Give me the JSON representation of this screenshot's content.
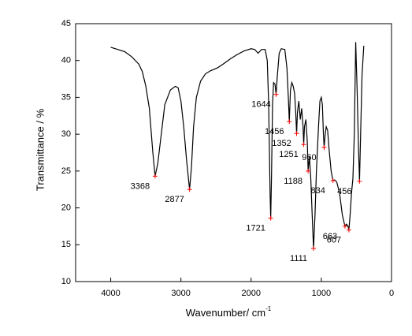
{
  "chart_data": {
    "type": "line",
    "xlabel": "Wavenumber/ cm",
    "xlabel_superscript": "-1",
    "ylabel": "Transmittance / %",
    "xlim": [
      4500,
      0
    ],
    "xticks": [
      4000,
      3000,
      2000,
      1000,
      0
    ],
    "ylim": [
      10,
      45
    ],
    "yticks": [
      10,
      15,
      20,
      25,
      30,
      35,
      40,
      45
    ],
    "color": "#000000",
    "marker_color": "#ff0000",
    "x": [
      4000,
      3900,
      3800,
      3700,
      3600,
      3550,
      3500,
      3450,
      3400,
      3368,
      3330,
      3280,
      3230,
      3150,
      3080,
      3040,
      3000,
      2960,
      2920,
      2877,
      2850,
      2820,
      2780,
      2720,
      2650,
      2580,
      2480,
      2400,
      2300,
      2200,
      2100,
      2000,
      1950,
      1900,
      1850,
      1800,
      1770,
      1750,
      1730,
      1721,
      1710,
      1695,
      1680,
      1660,
      1644,
      1630,
      1600,
      1570,
      1520,
      1490,
      1470,
      1456,
      1440,
      1420,
      1400,
      1380,
      1365,
      1352,
      1340,
      1320,
      1300,
      1280,
      1260,
      1251,
      1240,
      1220,
      1200,
      1188,
      1170,
      1150,
      1130,
      1111,
      1090,
      1070,
      1040,
      1020,
      1000,
      985,
      970,
      960,
      945,
      930,
      910,
      890,
      860,
      834,
      810,
      780,
      740,
      700,
      663,
      640,
      620,
      607,
      590,
      570,
      550,
      530,
      510,
      490,
      470,
      456,
      440,
      420,
      395
    ],
    "values": [
      41.8,
      41.5,
      41.2,
      40.5,
      39.5,
      38.5,
      36.5,
      33.5,
      27.5,
      24.3,
      26,
      30,
      34,
      36,
      36.5,
      36.3,
      34.5,
      31,
      26.5,
      22.5,
      25.5,
      31,
      35,
      37.2,
      38.2,
      38.6,
      39,
      39.5,
      40.2,
      40.8,
      41.3,
      41.6,
      41.5,
      41,
      41.5,
      41.5,
      40,
      34,
      22,
      18.6,
      24,
      34,
      37,
      36.8,
      35.4,
      37.5,
      41,
      41.6,
      41.5,
      39,
      35,
      31.7,
      36,
      37,
      36.5,
      35.5,
      33,
      30.1,
      33,
      34.5,
      32,
      33.5,
      31,
      28.6,
      31,
      32,
      29,
      25,
      27,
      24,
      19,
      14.5,
      19,
      25,
      31,
      34.5,
      35,
      34,
      30,
      28.2,
      30,
      31,
      30.5,
      28,
      25,
      23.7,
      23.8,
      23.5,
      22,
      19,
      17.5,
      17.8,
      17.5,
      17,
      19,
      22,
      24,
      30,
      42.5,
      36,
      28,
      23.6,
      30,
      38,
      42
    ],
    "peaks": [
      {
        "x": 3368,
        "y": 24.3
      },
      {
        "x": 2877,
        "y": 22.5
      },
      {
        "x": 1721,
        "y": 18.6
      },
      {
        "x": 1644,
        "y": 35.4
      },
      {
        "x": 1456,
        "y": 31.7
      },
      {
        "x": 1352,
        "y": 30.1
      },
      {
        "x": 1251,
        "y": 28.6
      },
      {
        "x": 960,
        "y": 28.2
      },
      {
        "x": 1188,
        "y": 25
      },
      {
        "x": 834,
        "y": 23.7
      },
      {
        "x": 456,
        "y": 23.6
      },
      {
        "x": 1111,
        "y": 14.5
      },
      {
        "x": 663,
        "y": 17.5
      },
      {
        "x": 607,
        "y": 17
      }
    ]
  }
}
